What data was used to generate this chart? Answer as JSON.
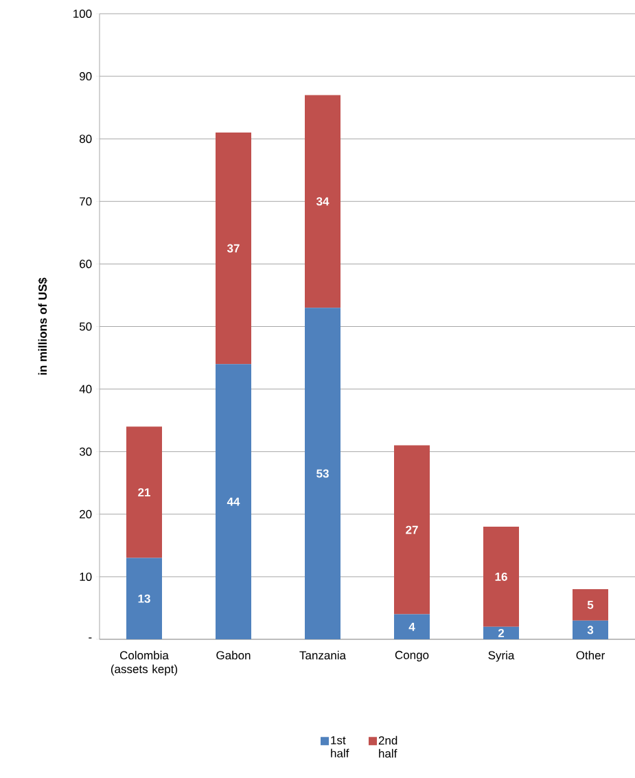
{
  "chart_data": {
    "type": "bar",
    "stacked": true,
    "ylabel": "in millions of US$",
    "categories": [
      "Colombia (assets kept)",
      "Gabon",
      "Tanzania",
      "Congo",
      "Syria",
      "Other"
    ],
    "series": [
      {
        "name": "1st half",
        "color": "#4f81bd",
        "values": [
          13,
          44,
          53,
          4,
          2,
          3
        ]
      },
      {
        "name": "2nd half",
        "color": "#c0504d",
        "values": [
          21,
          37,
          34,
          27,
          16,
          5
        ]
      }
    ],
    "ylim": [
      0,
      100
    ],
    "yticks": [
      {
        "value": 0,
        "label": "-"
      },
      10,
      20,
      30,
      40,
      50,
      60,
      70,
      80,
      90,
      100
    ],
    "grid": "y",
    "legend": "bottom",
    "data_labels": true
  }
}
